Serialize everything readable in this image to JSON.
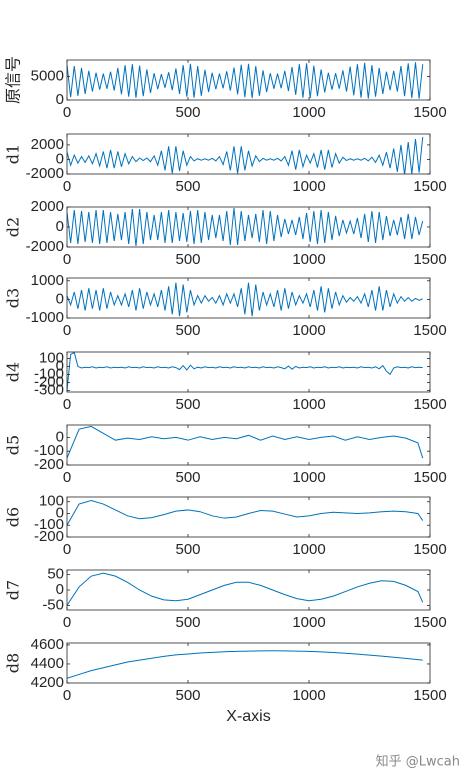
{
  "chart_data": [
    {
      "type": "line",
      "ylabel": "原信号",
      "color": "#0072bd",
      "xlim": [
        0,
        1500
      ],
      "xticks": [
        0,
        500,
        1000,
        1500
      ],
      "ylim": [
        0,
        8500
      ],
      "yticks": [
        0,
        5000
      ],
      "x": [
        0,
        15,
        30,
        45,
        60,
        75,
        90,
        105,
        120,
        135,
        150,
        165,
        180,
        195,
        210,
        225,
        240,
        255,
        270,
        285,
        300,
        315,
        330,
        345,
        360,
        375,
        390,
        405,
        420,
        435,
        450,
        465,
        480,
        495,
        510,
        525,
        540,
        555,
        570,
        585,
        600,
        615,
        630,
        645,
        660,
        675,
        690,
        705,
        720,
        735,
        750,
        765,
        780,
        795,
        810,
        825,
        840,
        855,
        870,
        885,
        900,
        915,
        930,
        945,
        960,
        975,
        990,
        1005,
        1020,
        1035,
        1050,
        1065,
        1080,
        1095,
        1110,
        1125,
        1140,
        1155,
        1170,
        1185,
        1200,
        1215,
        1230,
        1245,
        1260,
        1275,
        1290,
        1305,
        1320,
        1335,
        1350,
        1365,
        1380,
        1395,
        1410,
        1425,
        1440,
        1455,
        1470
      ],
      "values": [
        7500,
        600,
        7200,
        900,
        6800,
        1300,
        6200,
        1800,
        5800,
        2200,
        5600,
        2400,
        6000,
        2000,
        6800,
        1200,
        7400,
        700,
        7600,
        500,
        7300,
        800,
        6500,
        1500,
        5700,
        2300,
        5500,
        2600,
        5900,
        2100,
        6700,
        1300,
        7400,
        700,
        7700,
        500,
        7200,
        900,
        6400,
        1700,
        5800,
        2300,
        5600,
        2500,
        6100,
        2000,
        6900,
        1200,
        7500,
        600,
        7700,
        400,
        7200,
        900,
        6300,
        1700,
        5700,
        2400,
        5600,
        2500,
        6200,
        1900,
        7000,
        1100,
        7600,
        500,
        7800,
        400,
        7300,
        800,
        6500,
        1600,
        5800,
        2200,
        5700,
        2400,
        6300,
        1800,
        7100,
        1000,
        7600,
        500,
        7900,
        300,
        7400,
        700,
        6800,
        1300,
        6000,
        2100,
        6200,
        1800,
        7200,
        800,
        7800,
        400,
        8000,
        300,
        7600
      ]
    },
    {
      "type": "line",
      "ylabel": "d1",
      "color": "#0072bd",
      "xlim": [
        0,
        1500
      ],
      "xticks": [
        0,
        500,
        1000,
        1500
      ],
      "ylim": [
        -2000,
        3500
      ],
      "yticks": [
        -2000,
        0,
        2000
      ],
      "x": [
        0,
        15,
        30,
        45,
        60,
        75,
        90,
        105,
        120,
        135,
        150,
        165,
        180,
        195,
        210,
        225,
        240,
        255,
        270,
        285,
        300,
        315,
        330,
        345,
        360,
        375,
        390,
        405,
        420,
        435,
        450,
        465,
        480,
        495,
        510,
        525,
        540,
        555,
        570,
        585,
        600,
        615,
        630,
        645,
        660,
        675,
        690,
        705,
        720,
        735,
        750,
        765,
        780,
        795,
        810,
        825,
        840,
        855,
        870,
        885,
        900,
        915,
        930,
        945,
        960,
        975,
        990,
        1005,
        1020,
        1035,
        1050,
        1065,
        1080,
        1095,
        1110,
        1125,
        1140,
        1155,
        1170,
        1185,
        1200,
        1215,
        1230,
        1245,
        1260,
        1275,
        1290,
        1305,
        1320,
        1335,
        1350,
        1365,
        1380,
        1395,
        1410,
        1425,
        1440,
        1455,
        1470
      ],
      "values": [
        1000,
        -800,
        600,
        -500,
        400,
        -400,
        500,
        -600,
        800,
        -900,
        1100,
        -1200,
        1300,
        -1200,
        1100,
        -1000,
        800,
        -600,
        400,
        -300,
        200,
        -150,
        200,
        -300,
        500,
        -800,
        1200,
        -1500,
        1800,
        -1900,
        1800,
        -1600,
        1200,
        -800,
        400,
        -200,
        100,
        -100,
        100,
        -100,
        150,
        -200,
        400,
        -700,
        1100,
        -1500,
        1800,
        -1900,
        1800,
        -1500,
        1200,
        -900,
        500,
        -300,
        150,
        -100,
        100,
        -100,
        150,
        -200,
        400,
        -800,
        1200,
        -1400,
        1300,
        -1000,
        600,
        -500,
        800,
        -1100,
        1300,
        -1400,
        1300,
        -1100,
        800,
        -500,
        300,
        -150,
        100,
        -100,
        100,
        -100,
        150,
        -200,
        300,
        -400,
        600,
        -800,
        1000,
        -1200,
        1500,
        -1700,
        2000,
        -2100,
        2400,
        -2000,
        2800,
        -1800,
        3100
      ]
    },
    {
      "type": "line",
      "ylabel": "d2",
      "color": "#0072bd",
      "xlim": [
        0,
        1500
      ],
      "xticks": [
        0,
        500,
        1000,
        1500
      ],
      "ylim": [
        -2000,
        2000
      ],
      "yticks": [
        -2000,
        0,
        2000
      ],
      "x": [
        0,
        15,
        30,
        45,
        60,
        75,
        90,
        105,
        120,
        135,
        150,
        165,
        180,
        195,
        210,
        225,
        240,
        255,
        270,
        285,
        300,
        315,
        330,
        345,
        360,
        375,
        390,
        405,
        420,
        435,
        450,
        465,
        480,
        495,
        510,
        525,
        540,
        555,
        570,
        585,
        600,
        615,
        630,
        645,
        660,
        675,
        690,
        705,
        720,
        735,
        750,
        765,
        780,
        795,
        810,
        825,
        840,
        855,
        870,
        885,
        900,
        915,
        930,
        945,
        960,
        975,
        990,
        1005,
        1020,
        1035,
        1050,
        1065,
        1080,
        1095,
        1110,
        1125,
        1140,
        1155,
        1170,
        1185,
        1200,
        1215,
        1230,
        1245,
        1260,
        1275,
        1290,
        1305,
        1320,
        1335,
        1350,
        1365,
        1380,
        1395,
        1410,
        1425,
        1440,
        1455,
        1470
      ],
      "values": [
        1500,
        -1600,
        1700,
        -1700,
        1600,
        -1500,
        1500,
        -1600,
        1700,
        -1700,
        1700,
        -1600,
        1500,
        -1400,
        1300,
        -1300,
        1500,
        -1700,
        1800,
        -1900,
        1800,
        -1700,
        1500,
        -1300,
        1200,
        -1300,
        1500,
        -1600,
        1700,
        -1600,
        1500,
        -1400,
        1400,
        -1500,
        1600,
        -1700,
        1700,
        -1600,
        1500,
        -1300,
        1200,
        -1100,
        1200,
        -1400,
        1600,
        -1800,
        1900,
        -1800,
        1600,
        -1400,
        1200,
        -1100,
        1300,
        -1500,
        1700,
        -1700,
        1600,
        -1400,
        1200,
        -1000,
        800,
        -700,
        700,
        -800,
        1000,
        -1200,
        1400,
        -1500,
        1600,
        -1700,
        1700,
        -1600,
        1500,
        -1300,
        1100,
        -900,
        700,
        -600,
        600,
        -700,
        900,
        -1100,
        1300,
        -1500,
        1600,
        -1600,
        1500,
        -1300,
        1100,
        -900,
        700,
        -800,
        1000,
        -1200,
        1300,
        -1200,
        1000,
        -800,
        600
      ]
    },
    {
      "type": "line",
      "ylabel": "d3",
      "color": "#0072bd",
      "xlim": [
        0,
        1500
      ],
      "xticks": [
        0,
        500,
        1000,
        1500
      ],
      "ylim": [
        -1000,
        1150
      ],
      "yticks": [
        -1000,
        0,
        1000
      ],
      "x": [
        0,
        15,
        30,
        45,
        60,
        75,
        90,
        105,
        120,
        135,
        150,
        165,
        180,
        195,
        210,
        225,
        240,
        255,
        270,
        285,
        300,
        315,
        330,
        345,
        360,
        375,
        390,
        405,
        420,
        435,
        450,
        465,
        480,
        495,
        510,
        525,
        540,
        555,
        570,
        585,
        600,
        615,
        630,
        645,
        660,
        675,
        690,
        705,
        720,
        735,
        750,
        765,
        780,
        795,
        810,
        825,
        840,
        855,
        870,
        885,
        900,
        915,
        930,
        945,
        960,
        975,
        990,
        1005,
        1020,
        1035,
        1050,
        1065,
        1080,
        1095,
        1110,
        1125,
        1140,
        1155,
        1170,
        1185,
        1200,
        1215,
        1230,
        1245,
        1260,
        1275,
        1290,
        1305,
        1320,
        1335,
        1350,
        1365,
        1380,
        1395,
        1410,
        1425,
        1440,
        1455,
        1470
      ],
      "values": [
        200,
        -300,
        400,
        -500,
        500,
        -600,
        600,
        -500,
        500,
        -600,
        600,
        -500,
        400,
        -300,
        200,
        -300,
        300,
        -400,
        500,
        -600,
        600,
        -500,
        400,
        -300,
        300,
        -400,
        500,
        -600,
        700,
        -800,
        900,
        -900,
        800,
        -700,
        500,
        -300,
        200,
        -200,
        200,
        -100,
        100,
        -200,
        200,
        -300,
        300,
        -200,
        300,
        -400,
        600,
        -800,
        900,
        -900,
        800,
        -600,
        400,
        -300,
        300,
        -400,
        500,
        -600,
        600,
        -500,
        400,
        -300,
        200,
        -200,
        300,
        -400,
        500,
        -600,
        700,
        -700,
        600,
        -500,
        400,
        -300,
        200,
        -150,
        100,
        -100,
        150,
        -200,
        300,
        -400,
        500,
        -600,
        700,
        -600,
        500,
        -400,
        300,
        -200,
        150,
        -100,
        100,
        -100,
        50,
        -50,
        30
      ]
    },
    {
      "type": "line",
      "ylabel": "d4",
      "color": "#0072bd",
      "xlim": [
        0,
        1500
      ],
      "xticks": [
        0,
        500,
        1000,
        1500
      ],
      "ylim": [
        -320,
        180
      ],
      "yticks": [
        100,
        0,
        -100,
        -200,
        -300
      ],
      "x": [
        0,
        15,
        30,
        45,
        60,
        75,
        90,
        105,
        120,
        135,
        150,
        165,
        180,
        195,
        210,
        225,
        240,
        255,
        270,
        285,
        300,
        315,
        330,
        345,
        360,
        375,
        390,
        405,
        420,
        435,
        450,
        465,
        480,
        495,
        510,
        525,
        540,
        555,
        570,
        585,
        600,
        615,
        630,
        645,
        660,
        675,
        690,
        705,
        720,
        735,
        750,
        765,
        780,
        795,
        810,
        825,
        840,
        855,
        870,
        885,
        900,
        915,
        930,
        945,
        960,
        975,
        990,
        1005,
        1020,
        1035,
        1050,
        1065,
        1080,
        1095,
        1110,
        1125,
        1140,
        1155,
        1170,
        1185,
        1200,
        1215,
        1230,
        1245,
        1260,
        1275,
        1290,
        1305,
        1320,
        1335,
        1350,
        1365,
        1380,
        1395,
        1410,
        1425,
        1440,
        1455,
        1470
      ],
      "values": [
        -300,
        150,
        175,
        0,
        -20,
        -10,
        -15,
        -5,
        -20,
        -10,
        -15,
        -5,
        -20,
        -10,
        -15,
        -10,
        -20,
        -5,
        -15,
        -10,
        -20,
        -5,
        -15,
        -10,
        -20,
        -5,
        -15,
        -10,
        -20,
        -5,
        -15,
        -40,
        10,
        -45,
        15,
        -30,
        -10,
        -20,
        -5,
        -15,
        -10,
        -20,
        -5,
        -15,
        -10,
        -20,
        -5,
        -15,
        -10,
        -20,
        -5,
        -15,
        -10,
        -20,
        -5,
        -15,
        -10,
        -20,
        -5,
        -15,
        -30,
        5,
        -35,
        0,
        -20,
        -10,
        -15,
        -5,
        -20,
        -10,
        -15,
        -5,
        -20,
        -10,
        -15,
        -5,
        -20,
        -10,
        -15,
        -10,
        -20,
        -5,
        -15,
        -10,
        -20,
        -5,
        -30,
        10,
        -60,
        -100,
        -20,
        -5,
        -15,
        -10,
        -20,
        -5,
        -15,
        -10,
        -15
      ]
    },
    {
      "type": "line",
      "ylabel": "d5",
      "color": "#0072bd",
      "xlim": [
        0,
        1500
      ],
      "xticks": [
        0,
        500,
        1000,
        1500
      ],
      "ylim": [
        -200,
        90
      ],
      "yticks": [
        0,
        -100,
        -200
      ],
      "x": [
        0,
        50,
        100,
        150,
        200,
        250,
        300,
        350,
        400,
        450,
        500,
        550,
        600,
        650,
        700,
        750,
        800,
        850,
        900,
        950,
        1000,
        1050,
        1100,
        1150,
        1200,
        1250,
        1300,
        1350,
        1400,
        1450,
        1470
      ],
      "values": [
        -150,
        60,
        80,
        30,
        -20,
        -5,
        -15,
        5,
        -10,
        0,
        -20,
        5,
        -15,
        0,
        -10,
        15,
        -20,
        10,
        -15,
        5,
        -15,
        0,
        10,
        -20,
        5,
        -15,
        0,
        10,
        -5,
        -40,
        -150
      ]
    },
    {
      "type": "line",
      "ylabel": "d6",
      "color": "#0072bd",
      "xlim": [
        0,
        1500
      ],
      "xticks": [
        0,
        500,
        1000,
        1500
      ],
      "ylim": [
        -200,
        140
      ],
      "yticks": [
        100,
        0,
        -100,
        -200
      ],
      "x": [
        0,
        50,
        100,
        150,
        200,
        250,
        300,
        350,
        400,
        450,
        500,
        550,
        600,
        650,
        700,
        750,
        800,
        850,
        900,
        950,
        1000,
        1050,
        1100,
        1150,
        1200,
        1250,
        1300,
        1350,
        1400,
        1450,
        1470
      ],
      "values": [
        -100,
        80,
        110,
        80,
        30,
        -20,
        -45,
        -35,
        -10,
        20,
        30,
        15,
        -20,
        -40,
        -30,
        0,
        25,
        20,
        -5,
        -30,
        -20,
        0,
        10,
        5,
        0,
        5,
        15,
        20,
        15,
        0,
        -60
      ]
    },
    {
      "type": "line",
      "ylabel": "d7",
      "color": "#0072bd",
      "xlim": [
        0,
        1500
      ],
      "xticks": [
        0,
        500,
        1000,
        1500
      ],
      "ylim": [
        -65,
        65
      ],
      "yticks": [
        50,
        0,
        -50
      ],
      "x": [
        0,
        50,
        100,
        150,
        200,
        250,
        300,
        350,
        400,
        450,
        500,
        550,
        600,
        650,
        700,
        750,
        800,
        850,
        900,
        950,
        1000,
        1050,
        1100,
        1150,
        1200,
        1250,
        1300,
        1350,
        1400,
        1450,
        1470
      ],
      "values": [
        -50,
        10,
        45,
        55,
        45,
        25,
        0,
        -20,
        -32,
        -35,
        -30,
        -15,
        0,
        15,
        25,
        25,
        15,
        0,
        -15,
        -28,
        -35,
        -30,
        -20,
        -5,
        10,
        22,
        30,
        28,
        15,
        -5,
        -40
      ]
    },
    {
      "type": "line",
      "ylabel": "d8",
      "xlabel": "X-axis",
      "color": "#0072bd",
      "xlim": [
        0,
        1500
      ],
      "xticks": [
        0,
        500,
        1000,
        1500
      ],
      "ylim": [
        4200,
        4620
      ],
      "yticks": [
        4600,
        4400,
        4200
      ],
      "x": [
        0,
        50,
        100,
        150,
        200,
        250,
        300,
        350,
        400,
        450,
        500,
        550,
        600,
        650,
        700,
        750,
        800,
        850,
        900,
        950,
        1000,
        1050,
        1100,
        1150,
        1200,
        1250,
        1300,
        1350,
        1400,
        1450,
        1470
      ],
      "values": [
        4250,
        4290,
        4330,
        4360,
        4390,
        4420,
        4440,
        4460,
        4480,
        4495,
        4505,
        4515,
        4522,
        4528,
        4532,
        4535,
        4537,
        4538,
        4537,
        4535,
        4532,
        4527,
        4520,
        4512,
        4503,
        4493,
        4482,
        4470,
        4458,
        4445,
        4440
      ]
    }
  ],
  "watermark": "知乎 @Lwcah"
}
